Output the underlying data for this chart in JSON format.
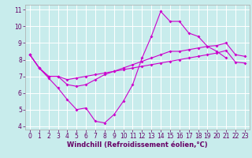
{
  "title": "",
  "xlabel": "Windchill (Refroidissement éolien,°C)",
  "bg_color": "#c8ecec",
  "grid_color": "#ffffff",
  "line_color": "#cc00cc",
  "xlim_min": -0.5,
  "xlim_max": 23.5,
  "ylim_min": 3.8,
  "ylim_max": 11.3,
  "xticks": [
    0,
    1,
    2,
    3,
    4,
    5,
    6,
    7,
    8,
    9,
    10,
    11,
    12,
    13,
    14,
    15,
    16,
    17,
    18,
    19,
    20,
    21,
    22,
    23
  ],
  "yticks": [
    4,
    5,
    6,
    7,
    8,
    9,
    10,
    11
  ],
  "line1_x": [
    0,
    1,
    2,
    3,
    4,
    5,
    6,
    7,
    8,
    9,
    10,
    11,
    12,
    13,
    14,
    15,
    16,
    17,
    18,
    19,
    20,
    21
  ],
  "line1_y": [
    8.3,
    7.5,
    6.9,
    6.3,
    5.6,
    5.0,
    5.1,
    4.3,
    4.2,
    4.7,
    5.5,
    6.5,
    8.1,
    9.4,
    10.9,
    10.3,
    10.3,
    9.6,
    9.4,
    8.8,
    8.5,
    8.1
  ],
  "line2_x": [
    0,
    1,
    2,
    3,
    4,
    5,
    6,
    7,
    8,
    9,
    10,
    11,
    12,
    13,
    14,
    15,
    16,
    17,
    18,
    19,
    20,
    21,
    22,
    23
  ],
  "line2_y": [
    8.3,
    7.5,
    7.0,
    7.0,
    6.5,
    6.4,
    6.5,
    6.8,
    7.1,
    7.3,
    7.5,
    7.7,
    7.9,
    8.1,
    8.3,
    8.5,
    8.5,
    8.6,
    8.7,
    8.8,
    8.85,
    9.0,
    8.3,
    8.2
  ],
  "line3_x": [
    0,
    1,
    2,
    3,
    4,
    5,
    6,
    7,
    8,
    9,
    10,
    11,
    12,
    13,
    14,
    15,
    16,
    17,
    18,
    19,
    20,
    21,
    22,
    23
  ],
  "line3_y": [
    8.3,
    7.5,
    7.0,
    7.0,
    6.8,
    6.9,
    7.0,
    7.1,
    7.2,
    7.3,
    7.4,
    7.5,
    7.6,
    7.7,
    7.8,
    7.9,
    8.0,
    8.1,
    8.2,
    8.3,
    8.4,
    8.55,
    7.85,
    7.8
  ],
  "tick_fontsize": 5.5,
  "xlabel_fontsize": 6.0,
  "tick_color": "#660066",
  "xlabel_color": "#660066",
  "marker": "D",
  "markersize": 2.0,
  "linewidth": 0.8
}
